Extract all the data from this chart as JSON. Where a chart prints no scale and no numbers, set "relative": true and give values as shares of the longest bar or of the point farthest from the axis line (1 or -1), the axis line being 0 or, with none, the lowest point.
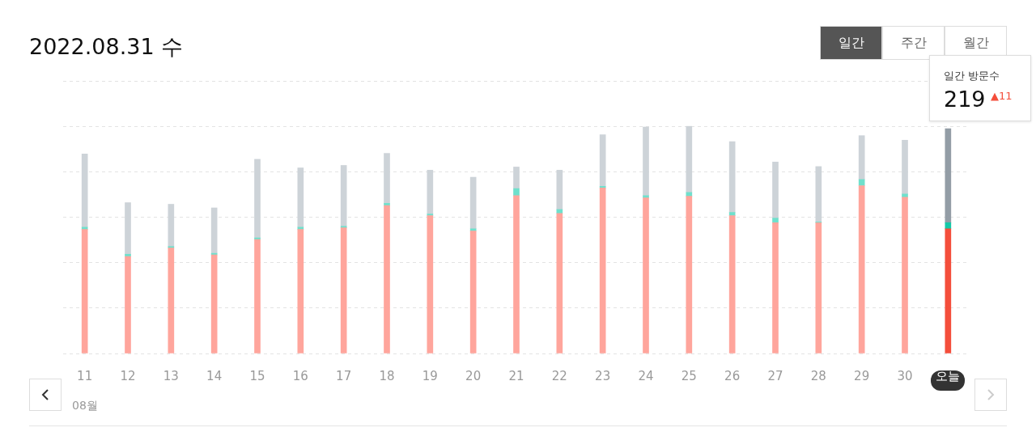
{
  "chart_data": {
    "type": "bar",
    "title": "2022.08.31 수",
    "stacked": true,
    "relative": true,
    "grid": "y",
    "legend": false,
    "categories": [
      "11",
      "12",
      "13",
      "14",
      "15",
      "16",
      "17",
      "18",
      "19",
      "20",
      "21",
      "22",
      "23",
      "24",
      "25",
      "26",
      "27",
      "28",
      "29",
      "30",
      "오늘"
    ],
    "series": [
      {
        "colors": [
          "#ffa59c",
          "#ffa59c",
          "#ffa59c",
          "#ffa59c",
          "#ffa59c",
          "#ffa59c",
          "#ffa59c",
          "#ffa59c",
          "#ffa59c",
          "#ffa59c",
          "#ffa59c",
          "#ffa59c",
          "#ffa59c",
          "#ffa59c",
          "#ffa59c",
          "#ffa59c",
          "#ffa59c",
          "#ffa59c",
          "#ffa59c",
          "#ffa59c",
          "#f44e3b"
        ],
        "values": [
          0.546,
          0.427,
          0.464,
          0.434,
          0.502,
          0.546,
          0.553,
          0.651,
          0.607,
          0.539,
          0.695,
          0.617,
          0.729,
          0.685,
          0.692,
          0.607,
          0.576,
          0.576,
          0.739,
          0.688,
          0.549
        ]
      },
      {
        "colors": [
          "#6fe0cc",
          "#6fe0cc",
          "#6fe0cc",
          "#6fe0cc",
          "#6fe0cc",
          "#6fe0cc",
          "#6fe0cc",
          "#6fe0cc",
          "#6fe0cc",
          "#6fe0cc",
          "#6fe0cc",
          "#6fe0cc",
          "#6fe0cc",
          "#6fe0cc",
          "#6fe0cc",
          "#6fe0cc",
          "#6fe0cc",
          "#6fe0cc",
          "#6fe0cc",
          "#6fe0cc",
          "#14c8a8"
        ],
        "values": [
          0.01,
          0.01,
          0.007,
          0.007,
          0.007,
          0.01,
          0.007,
          0.01,
          0.007,
          0.01,
          0.031,
          0.017,
          0.007,
          0.01,
          0.017,
          0.014,
          0.02,
          0.003,
          0.027,
          0.014,
          0.027
        ]
      },
      {
        "colors": [
          "#cdd3d8",
          "#cdd3d8",
          "#cdd3d8",
          "#cdd3d8",
          "#cdd3d8",
          "#cdd3d8",
          "#cdd3d8",
          "#cdd3d8",
          "#cdd3d8",
          "#cdd3d8",
          "#cdd3d8",
          "#cdd3d8",
          "#cdd3d8",
          "#cdd3d8",
          "#cdd3d8",
          "#cdd3d8",
          "#cdd3d8",
          "#cdd3d8",
          "#cdd3d8",
          "#cdd3d8",
          "#939da6"
        ],
        "values": [
          0.322,
          0.227,
          0.186,
          0.2,
          0.346,
          0.261,
          0.268,
          0.22,
          0.193,
          0.227,
          0.095,
          0.173,
          0.227,
          0.302,
          0.291,
          0.312,
          0.247,
          0.244,
          0.193,
          0.237,
          0.414
        ]
      }
    ],
    "annotations": [
      "08월",
      "일간",
      "주간",
      "월간",
      "일간 방문수",
      "219",
      "▲11"
    ]
  }
}
